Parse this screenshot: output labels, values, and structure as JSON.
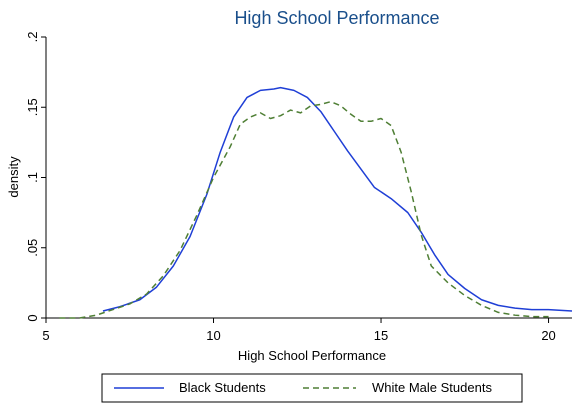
{
  "chart_data": {
    "type": "line",
    "title": "High School Performance",
    "xlabel": "High School Performance",
    "ylabel": "density",
    "xlim": [
      5,
      20.7
    ],
    "ylim": [
      0,
      0.2
    ],
    "x_ticks": [
      5,
      10,
      15,
      20
    ],
    "x_tick_labels": [
      "5",
      "10",
      "15",
      "20"
    ],
    "y_ticks": [
      0,
      0.05,
      0.1,
      0.15,
      0.2
    ],
    "y_tick_labels": [
      "0",
      ".05",
      ".1",
      ".15",
      ".2"
    ],
    "grid": false,
    "legend_position": "bottom",
    "series": [
      {
        "name": "Black Students",
        "color": "#1f3fd6",
        "style": "solid",
        "points": [
          [
            6.7,
            0.005
          ],
          [
            7.2,
            0.008
          ],
          [
            7.8,
            0.013
          ],
          [
            8.3,
            0.022
          ],
          [
            8.8,
            0.037
          ],
          [
            9.3,
            0.058
          ],
          [
            9.8,
            0.088
          ],
          [
            10.2,
            0.118
          ],
          [
            10.6,
            0.143
          ],
          [
            11.0,
            0.157
          ],
          [
            11.4,
            0.162
          ],
          [
            11.8,
            0.163
          ],
          [
            12.0,
            0.164
          ],
          [
            12.4,
            0.162
          ],
          [
            12.8,
            0.157
          ],
          [
            13.2,
            0.147
          ],
          [
            13.6,
            0.133
          ],
          [
            14.0,
            0.119
          ],
          [
            14.4,
            0.106
          ],
          [
            14.8,
            0.093
          ],
          [
            15.3,
            0.085
          ],
          [
            15.8,
            0.075
          ],
          [
            16.2,
            0.061
          ],
          [
            16.6,
            0.045
          ],
          [
            17.0,
            0.031
          ],
          [
            17.5,
            0.021
          ],
          [
            18.0,
            0.013
          ],
          [
            18.5,
            0.009
          ],
          [
            19.0,
            0.007
          ],
          [
            19.5,
            0.006
          ],
          [
            20.0,
            0.006
          ],
          [
            20.7,
            0.005
          ]
        ]
      },
      {
        "name": "White Male Students",
        "color": "#4f7f35",
        "style": "dashed",
        "points": [
          [
            5.4,
            0.0
          ],
          [
            6.0,
            0.0
          ],
          [
            6.5,
            0.002
          ],
          [
            7.0,
            0.006
          ],
          [
            7.5,
            0.01
          ],
          [
            8.0,
            0.017
          ],
          [
            8.5,
            0.03
          ],
          [
            9.0,
            0.048
          ],
          [
            9.5,
            0.073
          ],
          [
            10.0,
            0.1
          ],
          [
            10.5,
            0.122
          ],
          [
            10.8,
            0.138
          ],
          [
            11.1,
            0.143
          ],
          [
            11.4,
            0.146
          ],
          [
            11.7,
            0.142
          ],
          [
            12.0,
            0.144
          ],
          [
            12.3,
            0.148
          ],
          [
            12.6,
            0.146
          ],
          [
            12.9,
            0.151
          ],
          [
            13.2,
            0.152
          ],
          [
            13.5,
            0.154
          ],
          [
            13.8,
            0.151
          ],
          [
            14.1,
            0.145
          ],
          [
            14.4,
            0.14
          ],
          [
            14.7,
            0.14
          ],
          [
            15.0,
            0.142
          ],
          [
            15.3,
            0.137
          ],
          [
            15.6,
            0.118
          ],
          [
            15.9,
            0.09
          ],
          [
            16.2,
            0.059
          ],
          [
            16.5,
            0.037
          ],
          [
            17.0,
            0.025
          ],
          [
            17.5,
            0.016
          ],
          [
            18.0,
            0.009
          ],
          [
            18.5,
            0.004
          ],
          [
            19.0,
            0.002
          ],
          [
            19.5,
            0.001
          ],
          [
            20.0,
            0.001
          ]
        ]
      }
    ]
  }
}
